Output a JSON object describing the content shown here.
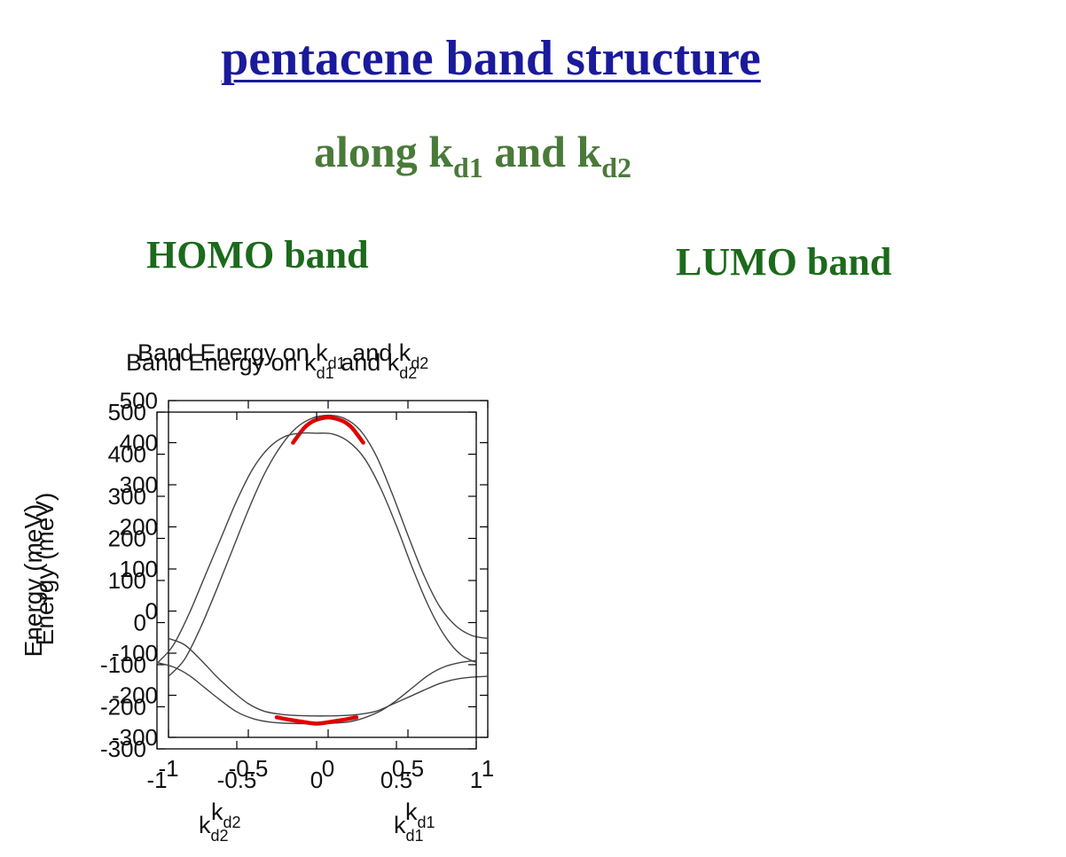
{
  "slide": {
    "title": "pentacene band structure",
    "subtitle_pre": "along k",
    "subtitle_sub1": "d1",
    "subtitle_mid": " and k",
    "subtitle_sub2": "d2"
  },
  "colors": {
    "title": "#1a1a9c",
    "subtitle": "#4a7a3a",
    "heading": "#1c6a1c",
    "curve": "#444444",
    "highlight": "#e00000"
  },
  "chart_data": [
    {
      "type": "line",
      "heading": "HOMO band",
      "title_pre": "Band Energy on k",
      "title_sub1": "d1",
      "title_mid": " and k",
      "title_sub2": "d2",
      "ylabel": "Energy (meV)",
      "xlim": [
        -1,
        1
      ],
      "ylim": [
        -300,
        500
      ],
      "xticks": [
        -1,
        -0.5,
        0,
        0.5,
        1
      ],
      "yticks": [
        -300,
        -200,
        -100,
        0,
        100,
        200,
        300,
        400,
        500
      ],
      "xtick_labels": [
        "-1",
        "-0.5",
        "0",
        "0.5",
        "1"
      ],
      "ytick_labels": [
        "-300",
        "-200",
        "-100",
        "0",
        "100",
        "200",
        "300",
        "400",
        "500"
      ],
      "x_left_label": "k",
      "x_left_sub": "d2",
      "x_right_label": "k",
      "x_right_sub": "d1",
      "grid": false,
      "x": [
        -1,
        -0.9,
        -0.8,
        -0.7,
        -0.6,
        -0.5,
        -0.4,
        -0.3,
        -0.2,
        -0.1,
        0,
        0.1,
        0.2,
        0.3,
        0.4,
        0.5,
        0.6,
        0.7,
        0.8,
        0.9,
        1
      ],
      "series": [
        {
          "values": [
            -155,
            -115,
            -40,
            50,
            145,
            240,
            325,
            390,
            435,
            458,
            465,
            458,
            430,
            370,
            280,
            180,
            85,
            10,
            -35,
            -58,
            -65
          ],
          "color": "#444444"
        },
        {
          "values": [
            -65,
            -80,
            -115,
            -155,
            -190,
            -220,
            -238,
            -245,
            -248,
            -249,
            -249,
            -248,
            -245,
            -238,
            -222,
            -205,
            -188,
            -172,
            -162,
            -157,
            -155
          ],
          "color": "#444444"
        }
      ],
      "highlight": {
        "x": [
          -0.22,
          -0.15,
          -0.1,
          -0.05,
          0,
          0.05,
          0.1,
          0.15,
          0.22
        ],
        "values": [
          400,
          435,
          450,
          457,
          460,
          457,
          450,
          435,
          400
        ],
        "color": "#e00000"
      }
    },
    {
      "type": "line",
      "heading": "LUMO band",
      "title_pre": "Band Energy on k",
      "title_sub1": "d1",
      "title_mid": " and k",
      "title_sub2": "d2",
      "ylabel": "Energy (meV)",
      "xlim": [
        -1,
        1
      ],
      "ylim": [
        -300,
        500
      ],
      "xticks": [
        -1,
        -0.5,
        0,
        0.5,
        1
      ],
      "yticks": [
        -300,
        -200,
        -100,
        0,
        100,
        200,
        300,
        400,
        500
      ],
      "xtick_labels": [
        "-1",
        "-0.5",
        "0",
        "0.5",
        "1"
      ],
      "ytick_labels": [
        "-300",
        "-200",
        "-100",
        "0",
        "100",
        "200",
        "300",
        "400",
        "500"
      ],
      "x_left_label": "k",
      "x_left_sub": "d2",
      "x_right_label": "k",
      "x_right_sub": "d1",
      "grid": false,
      "x": [
        -1,
        -0.9,
        -0.8,
        -0.7,
        -0.6,
        -0.5,
        -0.4,
        -0.3,
        -0.2,
        -0.1,
        0,
        0.1,
        0.2,
        0.3,
        0.4,
        0.5,
        0.6,
        0.7,
        0.8,
        0.9,
        1
      ],
      "series": [
        {
          "values": [
            -97,
            -55,
            20,
            110,
            200,
            290,
            365,
            415,
            442,
            450,
            450,
            448,
            430,
            390,
            320,
            230,
            130,
            40,
            -30,
            -75,
            -95
          ],
          "color": "#444444"
        },
        {
          "values": [
            -95,
            -105,
            -125,
            -155,
            -185,
            -212,
            -228,
            -236,
            -239,
            -240,
            -240,
            -239,
            -236,
            -226,
            -210,
            -185,
            -155,
            -125,
            -105,
            -95,
            -90
          ],
          "color": "#444444"
        }
      ],
      "highlight": {
        "x": [
          -0.25,
          -0.15,
          -0.05,
          0,
          0.05,
          0.15,
          0.25
        ],
        "values": [
          -225,
          -232,
          -238,
          -240,
          -238,
          -232,
          -225
        ],
        "color": "#e00000"
      }
    }
  ]
}
